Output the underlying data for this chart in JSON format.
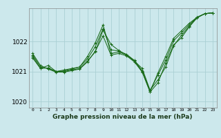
{
  "xlabel": "Graphe pression niveau de la mer (hPa)",
  "background_color": "#cce8ec",
  "grid_color": "#aacfd4",
  "line_color": "#1a6b1a",
  "ylim": [
    1019.8,
    1023.1
  ],
  "xlim": [
    -0.5,
    23.5
  ],
  "yticks": [
    1020,
    1021,
    1022
  ],
  "xticks": [
    0,
    1,
    2,
    3,
    4,
    5,
    6,
    7,
    8,
    9,
    10,
    11,
    12,
    13,
    14,
    15,
    16,
    17,
    18,
    19,
    20,
    21,
    22,
    23
  ],
  "series": [
    [
      1021.45,
      1021.1,
      1021.2,
      1021.0,
      1021.0,
      1021.05,
      1021.1,
      1021.35,
      1021.65,
      1022.38,
      1021.9,
      1021.7,
      1021.55,
      1021.35,
      1021.1,
      1020.38,
      1020.72,
      1021.15,
      1021.85,
      1022.2,
      1022.5,
      1022.8,
      1022.92,
      1022.95
    ],
    [
      1021.55,
      1021.15,
      1021.1,
      1021.0,
      1021.05,
      1021.1,
      1021.15,
      1021.5,
      1021.95,
      1022.55,
      1021.6,
      1021.65,
      1021.55,
      1021.35,
      1021.0,
      1020.33,
      1020.95,
      1021.5,
      1022.1,
      1022.35,
      1022.6,
      1022.8,
      1022.92,
      1022.95
    ],
    [
      1021.5,
      1021.1,
      1021.12,
      1021.0,
      1021.02,
      1021.08,
      1021.15,
      1021.42,
      1021.82,
      1022.42,
      1021.72,
      1021.68,
      1021.57,
      1021.37,
      1021.02,
      1020.37,
      1020.88,
      1021.38,
      1022.02,
      1022.28,
      1022.55,
      1022.8,
      1022.92,
      1022.95
    ],
    [
      1021.6,
      1021.2,
      1021.08,
      1020.98,
      1020.98,
      1021.03,
      1021.08,
      1021.32,
      1021.68,
      1022.18,
      1021.55,
      1021.6,
      1021.52,
      1021.32,
      1020.98,
      1020.32,
      1020.62,
      1021.28,
      1021.88,
      1022.12,
      1022.48,
      1022.78,
      1022.92,
      1022.95
    ]
  ]
}
